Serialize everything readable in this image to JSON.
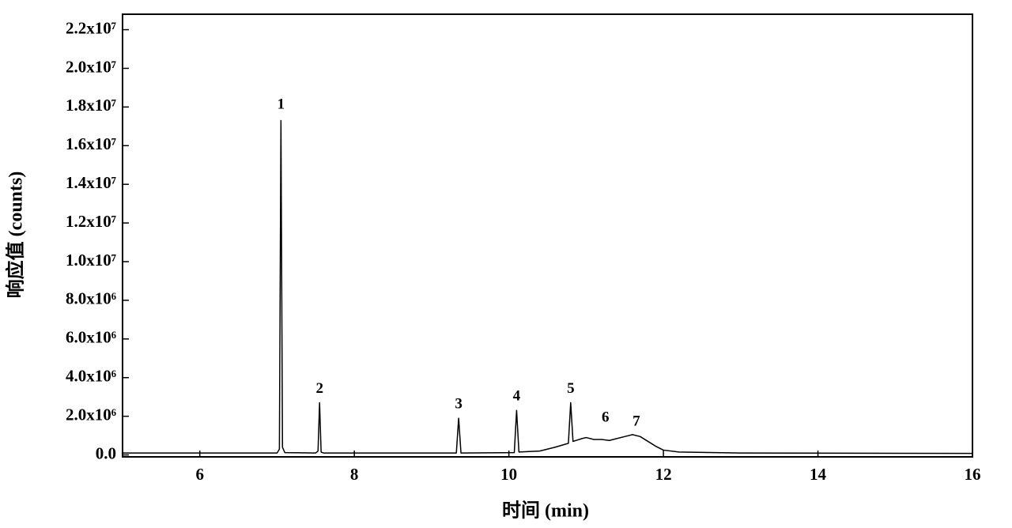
{
  "chart_data": {
    "type": "line",
    "x_label": "时间 (min)",
    "y_label": "响应值 (counts)",
    "color": "#000000",
    "xlim": [
      5,
      16
    ],
    "ylim": [
      -100000,
      22800000
    ],
    "xticks": [
      6,
      8,
      10,
      12,
      14,
      16
    ],
    "yticks": [
      {
        "value": 0,
        "label": "0.0"
      },
      {
        "value": 2000000,
        "label": "2.0x10⁶"
      },
      {
        "value": 4000000,
        "label": "4.0x10⁶"
      },
      {
        "value": 6000000,
        "label": "6.0x10⁶"
      },
      {
        "value": 8000000,
        "label": "8.0x10⁶"
      },
      {
        "value": 10000000,
        "label": "1.0x10⁷"
      },
      {
        "value": 12000000,
        "label": "1.2x10⁷"
      },
      {
        "value": 14000000,
        "label": "1.4x10⁷"
      },
      {
        "value": 16000000,
        "label": "1.6x10⁷"
      },
      {
        "value": 18000000,
        "label": "1.8x10⁷"
      },
      {
        "value": 20000000,
        "label": "2.0x10⁷"
      },
      {
        "value": 22000000,
        "label": "2.2x10⁷"
      }
    ],
    "x": [
      5.0,
      6.0,
      7.0,
      7.03,
      7.05,
      7.07,
      7.1,
      7.5,
      7.53,
      7.55,
      7.57,
      7.6,
      9.0,
      9.32,
      9.35,
      9.38,
      10.07,
      10.1,
      10.13,
      10.4,
      10.6,
      10.77,
      10.8,
      10.83,
      10.95,
      11.0,
      11.1,
      11.2,
      11.3,
      11.4,
      11.5,
      11.6,
      11.7,
      11.8,
      11.9,
      12.0,
      12.2,
      13.0,
      16.0
    ],
    "values": [
      100000,
      100000,
      100000,
      300000,
      17300000,
      400000,
      120000,
      100000,
      200000,
      2700000,
      150000,
      100000,
      100000,
      100000,
      1900000,
      100000,
      120000,
      2300000,
      150000,
      200000,
      400000,
      600000,
      2700000,
      700000,
      850000,
      900000,
      800000,
      800000,
      750000,
      850000,
      950000,
      1050000,
      950000,
      700000,
      450000,
      250000,
      150000,
      100000,
      80000
    ],
    "annotations": [
      {
        "text": "1",
        "x": 7.05,
        "y": 18100000
      },
      {
        "text": "2",
        "x": 7.55,
        "y": 3400000
      },
      {
        "text": "3",
        "x": 9.35,
        "y": 2600000
      },
      {
        "text": "4",
        "x": 10.1,
        "y": 3000000
      },
      {
        "text": "5",
        "x": 10.8,
        "y": 3400000
      },
      {
        "text": "6",
        "x": 11.25,
        "y": 1900000
      },
      {
        "text": "7",
        "x": 11.65,
        "y": 1700000
      }
    ]
  }
}
